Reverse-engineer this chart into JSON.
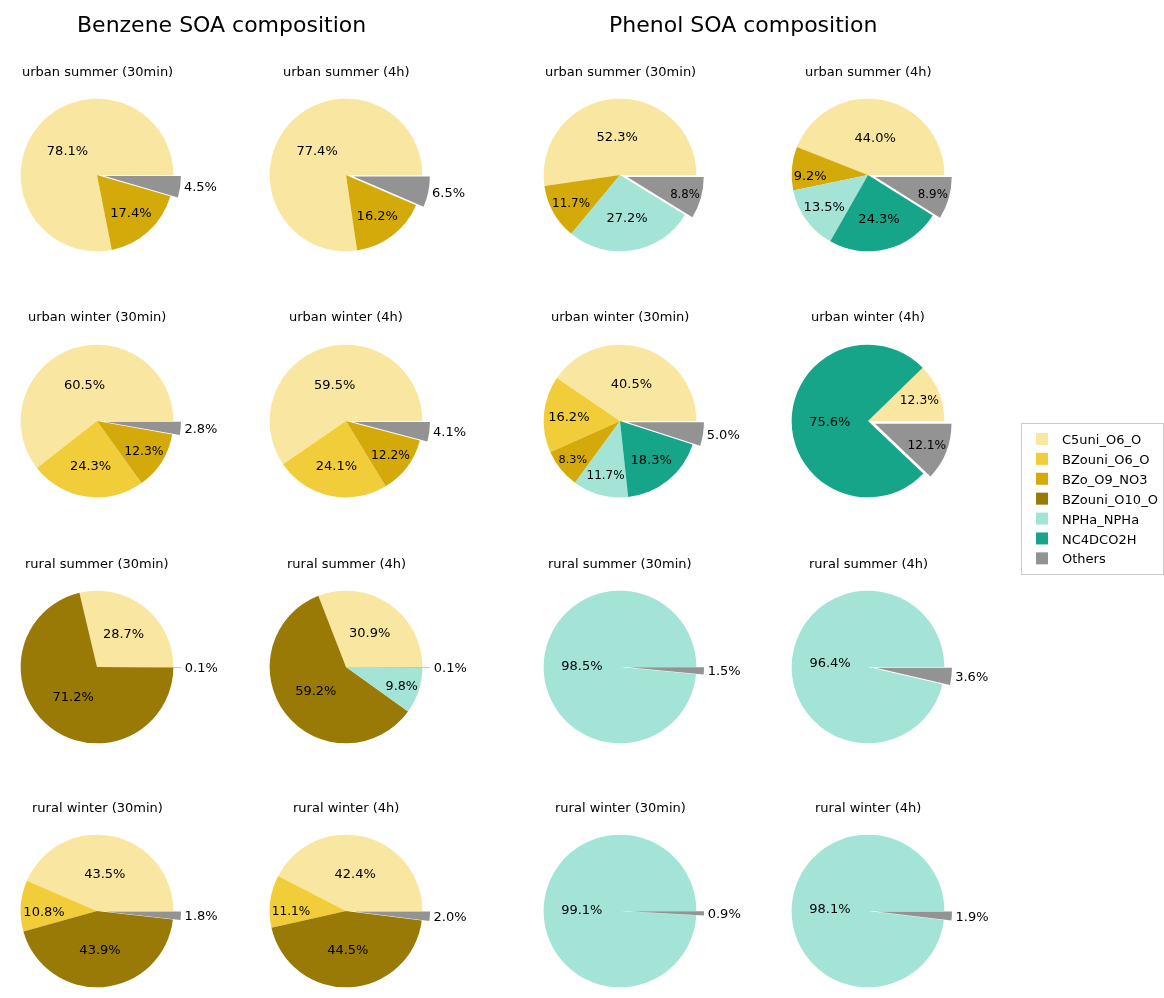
{
  "chart_data": [
    {
      "type": "other",
      "title": "Benzene SOA composition"
    },
    {
      "type": "other",
      "title": "Phenol SOA composition"
    },
    {
      "type": "pie",
      "title": "urban summer (30min)",
      "legend": "right",
      "categories": [
        "C5uni_O6_O",
        "BZouni_O6_O",
        "BZo_O9_NO3",
        "BZouni_O10_O",
        "NPHa_NPHa",
        "NC4DCO2H",
        "Others"
      ],
      "colors": [
        "#f9e6a0",
        "#f2cd3a",
        "#d4aa0a",
        "#9a7a06",
        "#a3e4d7",
        "#16a589",
        "#939393"
      ],
      "values": [
        78.1,
        0,
        17.4,
        0,
        0,
        0,
        4.5
      ],
      "value_labels": [
        "78.1%",
        null,
        "17.4%",
        null,
        null,
        null,
        "4.5%"
      ]
    },
    {
      "type": "pie",
      "title": "urban summer (4h)",
      "categories": [
        null,
        null,
        null,
        null,
        null,
        null,
        null
      ],
      "colors": [
        "#f9e6a0",
        "#f2cd3a",
        "#d4aa0a",
        "#9a7a06",
        "#a3e4d7",
        "#16a589",
        "#939393"
      ],
      "values": [
        77.4,
        0,
        16.2,
        0,
        0,
        0,
        6.5
      ],
      "value_labels": [
        "77.4%",
        null,
        "16.2%",
        null,
        null,
        null,
        "6.5%"
      ]
    },
    {
      "type": "pie",
      "title": "urban summer (30min)",
      "categories": [
        null,
        null,
        null,
        null,
        null,
        null,
        null
      ],
      "colors": [
        "#f9e6a0",
        "#f2cd3a",
        "#d4aa0a",
        "#9a7a06",
        "#a3e4d7",
        "#16a589",
        "#939393"
      ],
      "values": [
        52.3,
        0,
        11.7,
        0,
        27.2,
        0,
        8.8
      ],
      "value_labels": [
        "52.3%",
        null,
        "11.7%",
        null,
        "27.2%",
        null,
        "8.8%"
      ]
    },
    {
      "type": "pie",
      "title": "urban summer (4h)",
      "categories": [
        null,
        null,
        null,
        null,
        null,
        null,
        null
      ],
      "colors": [
        "#f9e6a0",
        "#f2cd3a",
        "#d4aa0a",
        "#9a7a06",
        "#a3e4d7",
        "#16a589",
        "#939393"
      ],
      "values": [
        44.0,
        0,
        9.2,
        0,
        13.5,
        24.3,
        8.9
      ],
      "value_labels": [
        "44.0%",
        null,
        "9.2%",
        null,
        "13.5%",
        "24.3%",
        "8.9%"
      ]
    },
    {
      "type": "pie",
      "title": "urban winter (30min)",
      "categories": [
        null,
        null,
        null,
        null,
        null,
        null,
        null
      ],
      "colors": [
        "#f9e6a0",
        "#f2cd3a",
        "#d4aa0a",
        "#9a7a06",
        "#a3e4d7",
        "#16a589",
        "#939393"
      ],
      "values": [
        60.5,
        24.3,
        12.3,
        0,
        0,
        0,
        2.8
      ],
      "value_labels": [
        "60.5%",
        "24.3%",
        "12.3%",
        null,
        null,
        null,
        "2.8%"
      ]
    },
    {
      "type": "pie",
      "title": "urban winter (4h)",
      "categories": [
        null,
        null,
        null,
        null,
        null,
        null,
        null
      ],
      "colors": [
        "#f9e6a0",
        "#f2cd3a",
        "#d4aa0a",
        "#9a7a06",
        "#a3e4d7",
        "#16a589",
        "#939393"
      ],
      "values": [
        59.5,
        24.1,
        12.2,
        0,
        0,
        0,
        4.1
      ],
      "value_labels": [
        "59.5%",
        "24.1%",
        "12.2%",
        null,
        null,
        null,
        "4.1%"
      ]
    },
    {
      "type": "pie",
      "title": "urban winter (30min)",
      "categories": [
        null,
        null,
        null,
        null,
        null,
        null,
        null
      ],
      "colors": [
        "#f9e6a0",
        "#f2cd3a",
        "#d4aa0a",
        "#9a7a06",
        "#a3e4d7",
        "#16a589",
        "#939393"
      ],
      "values": [
        40.5,
        16.2,
        8.3,
        0,
        11.7,
        18.3,
        5.0
      ],
      "value_labels": [
        "40.5%",
        "16.2%",
        "8.3%",
        null,
        "11.7%",
        "18.3%",
        "5.0%"
      ]
    },
    {
      "type": "pie",
      "title": "urban winter (4h)",
      "categories": [
        null,
        null,
        null,
        null,
        null,
        null,
        null
      ],
      "colors": [
        "#f9e6a0",
        "#f2cd3a",
        "#d4aa0a",
        "#9a7a06",
        "#a3e4d7",
        "#16a589",
        "#939393"
      ],
      "values": [
        12.3,
        0,
        0,
        0,
        0,
        75.6,
        12.1
      ],
      "value_labels": [
        "12.3%",
        null,
        null,
        null,
        null,
        "75.6%",
        "12.1%"
      ]
    },
    {
      "type": "pie",
      "title": "rural summer (30min)",
      "categories": [
        null,
        null,
        null,
        null,
        null,
        null,
        null
      ],
      "colors": [
        "#f9e6a0",
        "#f2cd3a",
        "#d4aa0a",
        "#9a7a06",
        "#a3e4d7",
        "#16a589",
        "#939393"
      ],
      "values": [
        28.7,
        0,
        0,
        71.2,
        0,
        0,
        0.1
      ],
      "value_labels": [
        "28.7%",
        null,
        null,
        "71.2%",
        null,
        null,
        "0.1%"
      ]
    },
    {
      "type": "pie",
      "title": "rural summer (4h)",
      "categories": [
        null,
        null,
        null,
        null,
        null,
        null,
        null
      ],
      "colors": [
        "#f9e6a0",
        "#f2cd3a",
        "#d4aa0a",
        "#9a7a06",
        "#a3e4d7",
        "#16a589",
        "#939393"
      ],
      "values": [
        30.9,
        0,
        0,
        59.2,
        9.8,
        0,
        0.1
      ],
      "value_labels": [
        "30.9%",
        null,
        null,
        "59.2%",
        "9.8%",
        null,
        "0.1%"
      ]
    },
    {
      "type": "pie",
      "title": "rural summer (30min)",
      "categories": [
        null,
        null,
        null,
        null,
        null,
        null,
        null
      ],
      "colors": [
        "#f9e6a0",
        "#f2cd3a",
        "#d4aa0a",
        "#9a7a06",
        "#a3e4d7",
        "#16a589",
        "#939393"
      ],
      "values": [
        0,
        0,
        0,
        0,
        98.5,
        0,
        1.5
      ],
      "value_labels": [
        null,
        null,
        null,
        null,
        "98.5%",
        null,
        "1.5%"
      ]
    },
    {
      "type": "pie",
      "title": "rural summer (4h)",
      "categories": [
        null,
        null,
        null,
        null,
        null,
        null,
        null
      ],
      "colors": [
        "#f9e6a0",
        "#f2cd3a",
        "#d4aa0a",
        "#9a7a06",
        "#a3e4d7",
        "#16a589",
        "#939393"
      ],
      "values": [
        0,
        0,
        0,
        0,
        96.4,
        0,
        3.6
      ],
      "value_labels": [
        null,
        null,
        null,
        null,
        "96.4%",
        null,
        "3.6%"
      ]
    },
    {
      "type": "pie",
      "title": "rural winter (30min)",
      "categories": [
        null,
        null,
        null,
        null,
        null,
        null,
        null
      ],
      "colors": [
        "#f9e6a0",
        "#f2cd3a",
        "#d4aa0a",
        "#9a7a06",
        "#a3e4d7",
        "#16a589",
        "#939393"
      ],
      "values": [
        43.5,
        10.8,
        0,
        43.9,
        0,
        0,
        1.8
      ],
      "value_labels": [
        "43.5%",
        "10.8%",
        null,
        "43.9%",
        null,
        null,
        "1.8%"
      ]
    },
    {
      "type": "pie",
      "title": "rural winter (4h)",
      "categories": [
        null,
        null,
        null,
        null,
        null,
        null,
        null
      ],
      "colors": [
        "#f9e6a0",
        "#f2cd3a",
        "#d4aa0a",
        "#9a7a06",
        "#a3e4d7",
        "#16a589",
        "#939393"
      ],
      "values": [
        42.4,
        11.1,
        0,
        44.5,
        0,
        0,
        2.0
      ],
      "value_labels": [
        "42.4%",
        "11.1%",
        null,
        "44.5%",
        null,
        null,
        "2.0%"
      ]
    },
    {
      "type": "pie",
      "title": "rural winter (30min)",
      "categories": [
        null,
        null,
        null,
        null,
        null,
        null,
        null
      ],
      "colors": [
        "#f9e6a0",
        "#f2cd3a",
        "#d4aa0a",
        "#9a7a06",
        "#a3e4d7",
        "#16a589",
        "#939393"
      ],
      "values": [
        0,
        0,
        0,
        0,
        99.1,
        0,
        0.9
      ],
      "value_labels": [
        null,
        null,
        null,
        null,
        "99.1%",
        null,
        "0.9%"
      ]
    },
    {
      "type": "pie",
      "title": "rural winter (4h)",
      "categories": [
        null,
        null,
        null,
        null,
        null,
        null,
        null
      ],
      "colors": [
        "#f9e6a0",
        "#f2cd3a",
        "#d4aa0a",
        "#9a7a06",
        "#a3e4d7",
        "#16a589",
        "#939393"
      ],
      "values": [
        0,
        0,
        0,
        0,
        98.1,
        0,
        1.9
      ],
      "value_labels": [
        null,
        null,
        null,
        null,
        "98.1%",
        null,
        "1.9%"
      ]
    }
  ]
}
